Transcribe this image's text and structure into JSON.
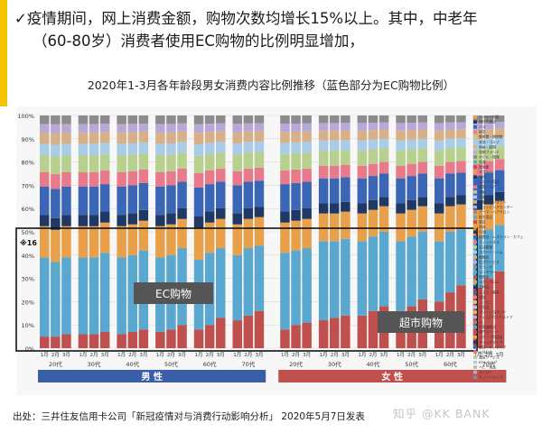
{
  "headline": {
    "line1": "✓疫情期间，网上消费金额，购物次数均增长15%以上。其中，中老年",
    "line2": "（60-80岁）消费者使用EC购物的比例明显增加，"
  },
  "source": "出处：三井住友信用卡公司「新冠疫情对与消费行动影响分析」 2020年5月7日发表",
  "watermark": "知乎 @KK BANK",
  "chart_data": {
    "type": "bar",
    "stacked": true,
    "title": "2020年1-3月各年龄段男女消费内容比例推移（蓝色部分为EC购物比例）",
    "ylim": [
      0,
      100
    ],
    "y_ticks": [
      "0%",
      "10%",
      "20%",
      "30%",
      "40%",
      "50%",
      "60%",
      "70%",
      "80%",
      "90%",
      "100%"
    ],
    "grid": true,
    "legend": "right",
    "categories": [
      "1月",
      "2月",
      "3月"
    ],
    "age_groups": [
      "20代",
      "30代",
      "40代",
      "50代",
      "60代",
      "70代"
    ],
    "genders": [
      {
        "label": "男 性",
        "color": "#3a5fa8"
      },
      {
        "label": "女 性",
        "color": "#c0504d"
      }
    ],
    "annotations": {
      "ec": "EC购物",
      "supermarket": "超市购物",
      "marker": "※16"
    },
    "colors": {
      "supermarket": "#c0504d",
      "ec": "#5aa7cf",
      "orange": "#e8a04a",
      "navy": "#1f3864",
      "blue": "#3a66b5",
      "pink": "#e87a8c",
      "green": "#b8d08e",
      "lightblue": "#a9cde8",
      "tan": "#d8b088",
      "lavender": "#b8a8d8",
      "misc": "#8c8c8c",
      "highlight_box": "#111111"
    },
    "legend_items": [
      "レジャー施設",
      "旅行代理店",
      "バス",
      "航空",
      "美術館・博物館",
      "気取・ゴルフ",
      "映画・劇場",
      "衣類ブランド",
      "ホテル・旅館",
      "鉄道",
      "居酒屋",
      "タクシー",
      "海外",
      "スポーツ用品",
      "家電・ヘア",
      "酒販",
      "百貨店",
      "眼鏡・コンタクト",
      "ショッピングセンター",
      "パーマ・ヘアサロン",
      "衛生用品",
      "書店",
      "家具",
      "石油",
      "飲食店・レストラン・カフェ",
      "フィットネス",
      "生活雑貨",
      "スポーツ・ジム",
      "眼鏡店",
      "生活サービス",
      "ドラッグ",
      "レンタカー",
      "飲食店",
      "スポーツジム",
      "衣料品",
      "エステ・美容",
      "通信",
      "コンビニ",
      "日用品",
      "ガソリンスタンド",
      "ディスカウントストア",
      "SC",
      "家電量販店",
      "専門スーパー",
      "スポーツ用品店",
      "ドラッグストア",
      "家具・インテリア",
      "公共料金",
      "通信サービス",
      "ECショップ",
      "ベビー用品",
      "スーパー",
      "ネットショップ"
    ],
    "series_note": "Each bar: supermarket (bottom), EC, then other categories stacked to 100%",
    "series": [
      {
        "name": "超市购物",
        "group": "男性",
        "values": [
          [
            5,
            5,
            6
          ],
          [
            6,
            6,
            7
          ],
          [
            6,
            7,
            8
          ],
          [
            7,
            8,
            10
          ],
          [
            8,
            10,
            13
          ],
          [
            12,
            14,
            16
          ]
        ]
      },
      {
        "name": "EC购物",
        "group": "男性",
        "values": [
          [
            34,
            32,
            33
          ],
          [
            33,
            33,
            34
          ],
          [
            33,
            33,
            34
          ],
          [
            32,
            32,
            33
          ],
          [
            30,
            31,
            30
          ],
          [
            28,
            29,
            28
          ]
        ]
      },
      {
        "name": "超市购物",
        "group": "女性",
        "values": [
          [
            8,
            10,
            11
          ],
          [
            12,
            13,
            14
          ],
          [
            14,
            16,
            18
          ],
          [
            16,
            18,
            21
          ],
          [
            20,
            24,
            27
          ],
          [
            26,
            30,
            33
          ]
        ]
      },
      {
        "name": "EC购物",
        "group": "女性",
        "values": [
          [
            33,
            32,
            32
          ],
          [
            34,
            33,
            33
          ],
          [
            32,
            32,
            32
          ],
          [
            30,
            30,
            29
          ],
          [
            26,
            26,
            24
          ],
          [
            22,
            21,
            20
          ]
        ]
      }
    ]
  }
}
